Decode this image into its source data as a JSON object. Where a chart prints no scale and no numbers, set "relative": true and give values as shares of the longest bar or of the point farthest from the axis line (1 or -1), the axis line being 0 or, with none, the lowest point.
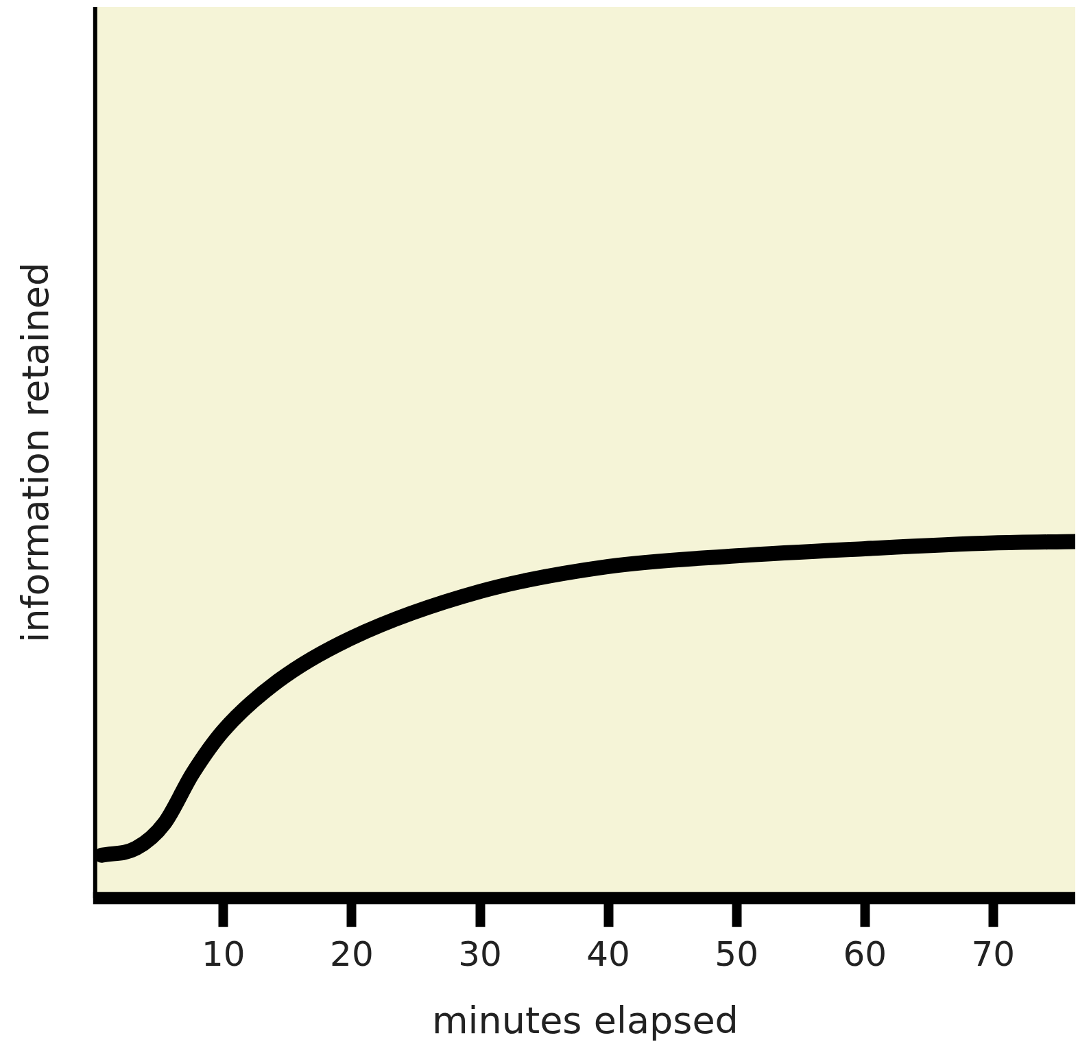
{
  "chart_data": {
    "type": "line",
    "xlabel": "minutes elapsed",
    "ylabel": "information retained",
    "relative": true,
    "x": [
      0.5,
      3.2,
      5.4,
      7.6,
      10,
      14.3,
      20,
      30,
      40,
      50,
      60,
      70,
      76.4
    ],
    "series": [
      {
        "color": "#000000",
        "values": [
          0.12,
          0.14,
          0.21,
          0.35,
          0.47,
          0.61,
          0.73,
          0.86,
          0.93,
          0.96,
          0.98,
          0.996,
          1
        ]
      }
    ],
    "xlim": [
      0,
      76.4
    ],
    "xticks": [
      10,
      20,
      30,
      40,
      50,
      60,
      70
    ],
    "grid": false,
    "legend": false,
    "marker": "none",
    "line_style": "solid"
  }
}
